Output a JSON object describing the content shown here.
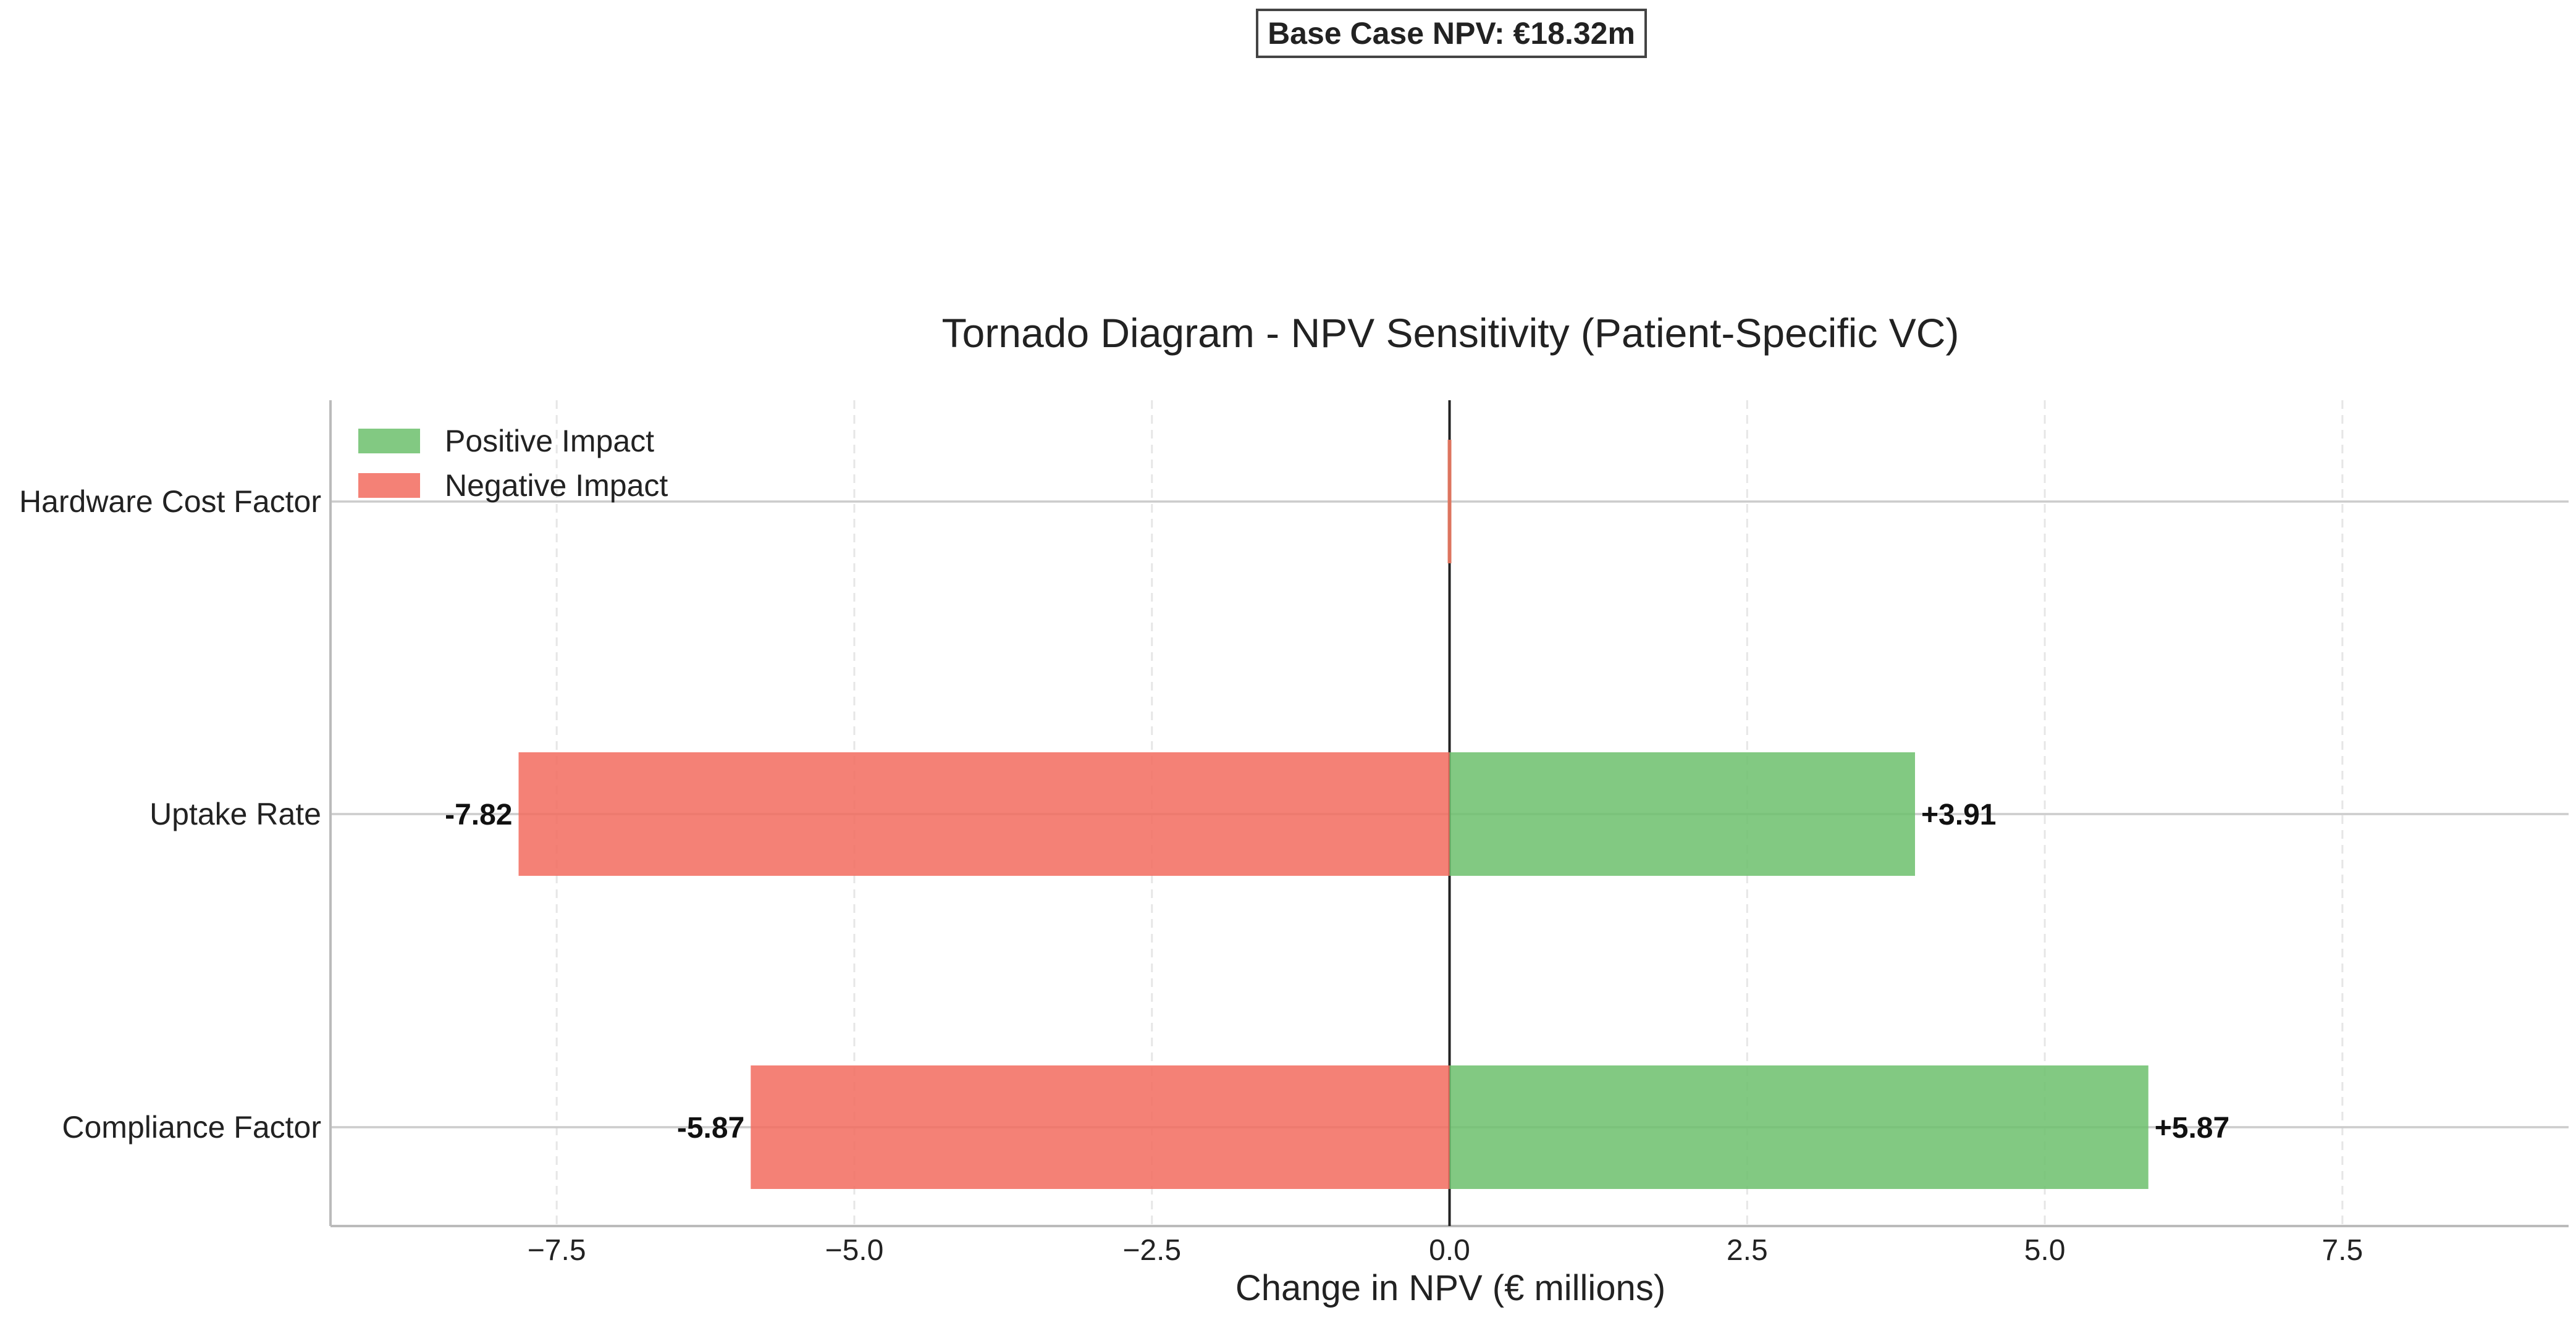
{
  "base_case_label": "Base Case NPV: €18.32m",
  "chart_data": {
    "type": "bar",
    "orientation": "horizontal",
    "title": "Tornado Diagram - NPV Sensitivity (Patient-Specific VC)",
    "xlabel": "Change in NPV (€ millions)",
    "ylabel": "",
    "xlim": [
      -9.4,
      9.4
    ],
    "xticks": [
      -7.5,
      -5.0,
      -2.5,
      0.0,
      2.5,
      5.0,
      7.5
    ],
    "xtick_labels": [
      "−7.5",
      "−5.0",
      "−2.5",
      "0.0",
      "2.5",
      "5.0",
      "7.5"
    ],
    "grid": true,
    "legend_position": "top-left",
    "categories": [
      "Hardware Cost Factor",
      "Uptake Rate",
      "Compliance Factor"
    ],
    "series": [
      {
        "name": "Positive Impact",
        "color": "#6cbf6c",
        "values": [
          0.0,
          3.91,
          5.87
        ],
        "labels": [
          "",
          "+3.91",
          "+5.87"
        ]
      },
      {
        "name": "Negative Impact",
        "color": "#f26b5e",
        "values": [
          0.0,
          -7.82,
          -5.87
        ],
        "labels": [
          "",
          "-7.82",
          "-5.87"
        ]
      }
    ]
  }
}
